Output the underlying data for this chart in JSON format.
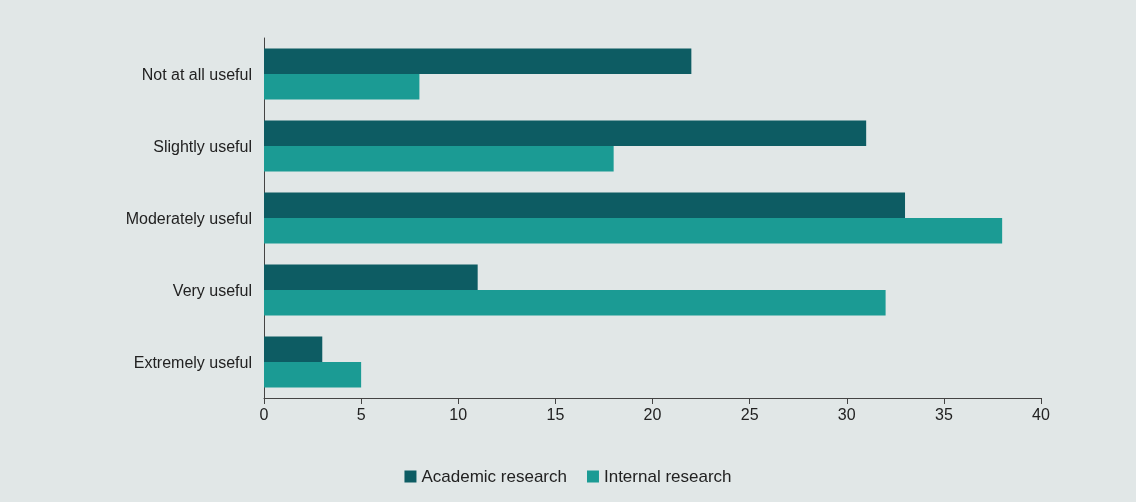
{
  "chart_data": {
    "type": "bar",
    "orientation": "horizontal",
    "categories": [
      "Not at all useful",
      "Slightly useful",
      "Moderately useful",
      "Very useful",
      "Extremely useful"
    ],
    "series": [
      {
        "name": "Academic research",
        "color": "#0d5c63",
        "values": [
          22,
          31,
          33,
          11,
          3
        ]
      },
      {
        "name": "Internal research",
        "color": "#1b9b94",
        "values": [
          8,
          18,
          38,
          32,
          5
        ]
      }
    ],
    "xlim": [
      0,
      40
    ],
    "xticks": [
      0,
      5,
      10,
      15,
      20,
      25,
      30,
      35,
      40
    ],
    "grid": false,
    "legend": "bottom"
  }
}
